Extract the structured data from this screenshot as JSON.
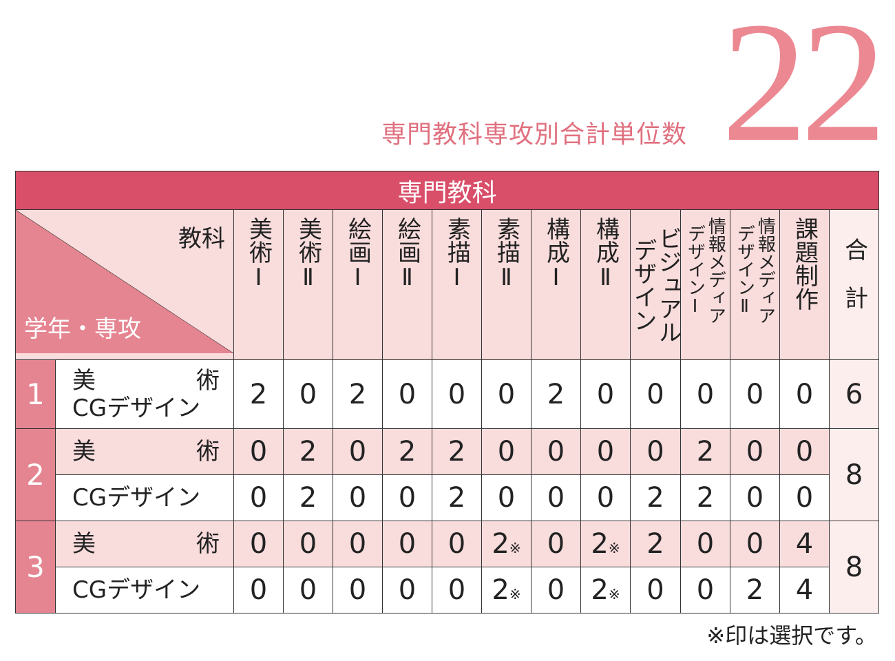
{
  "header": {
    "title": "専門教科専攻別合計単位数",
    "number": "22"
  },
  "table": {
    "caption": "専門教科",
    "corner_top": "教科",
    "corner_bottom": "学年・専攻",
    "columns": [
      [
        "美術Ⅰ"
      ],
      [
        "美術Ⅱ"
      ],
      [
        "絵画Ⅰ"
      ],
      [
        "絵画Ⅱ"
      ],
      [
        "素描Ⅰ"
      ],
      [
        "素描Ⅱ"
      ],
      [
        "構成Ⅰ"
      ],
      [
        "構成Ⅱ"
      ],
      [
        "ビジュアルデザイン"
      ],
      [
        "情報メディア",
        "デザインⅠ"
      ],
      [
        "情報メディア",
        "デザインⅡ"
      ],
      [
        "課題制作"
      ]
    ],
    "total_header": "合計",
    "rows": [
      {
        "year": 1,
        "majors": [
          {
            "name": [
              "美術",
              "CGデザイン"
            ],
            "credits": [
              2,
              0,
              2,
              0,
              0,
              0,
              2,
              0,
              0,
              0,
              0,
              0
            ]
          }
        ],
        "total": 6
      },
      {
        "year": 2,
        "majors": [
          {
            "name": [
              "美術"
            ],
            "credits": [
              0,
              2,
              0,
              2,
              2,
              0,
              0,
              0,
              0,
              2,
              0,
              0
            ]
          },
          {
            "name": [
              "CGデザイン"
            ],
            "credits": [
              0,
              2,
              0,
              0,
              2,
              0,
              0,
              0,
              2,
              2,
              0,
              0
            ]
          }
        ],
        "total": 8
      },
      {
        "year": 3,
        "majors": [
          {
            "name": [
              "美術"
            ],
            "credits": [
              0,
              0,
              0,
              0,
              0,
              {
                "value": 2,
                "suffix": "※"
              },
              0,
              {
                "value": 2,
                "suffix": "※"
              },
              2,
              0,
              0,
              4
            ]
          },
          {
            "name": [
              "CGデザイン"
            ],
            "credits": [
              0,
              0,
              0,
              0,
              0,
              {
                "value": 2,
                "suffix": "※"
              },
              0,
              {
                "value": 2,
                "suffix": "※"
              },
              0,
              0,
              2,
              4
            ]
          }
        ],
        "total": 8
      }
    ]
  },
  "note": "※印は選択です。"
}
